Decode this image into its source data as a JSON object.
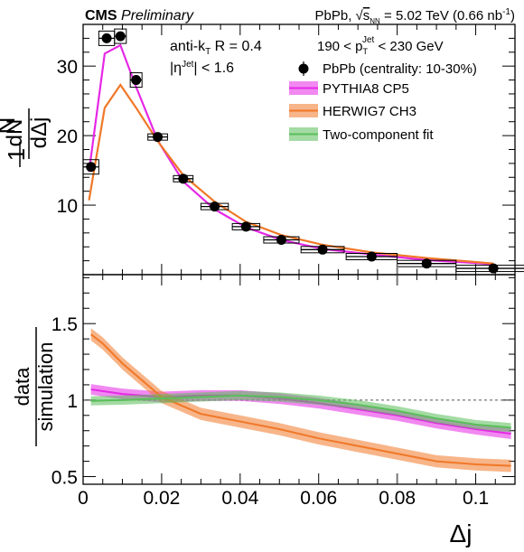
{
  "header": {
    "left_bold": "CMS",
    "left_italic": "Preliminary",
    "right_prefix": "PbPb, ",
    "right_sqrt": "s",
    "right_sqrt_sub": "NN",
    "right_energy": " = 5.02 TeV (0.66 nb",
    "right_lumi_exp": "-1",
    "right_close": ")"
  },
  "annotations": {
    "algo_prefix": "anti-k",
    "algo_sub": "T",
    "algo_suffix": " R = 0.4",
    "eta_prefix": "|η",
    "eta_sup": "Jet",
    "eta_suffix": "| < 1.6",
    "pt_prefix": "190 < p",
    "pt_sub": "T",
    "pt_sup": "Jet",
    "pt_suffix": " < 230 GeV"
  },
  "legend": [
    {
      "label": "PbPb (centrality: 10-30%)",
      "kind": "marker",
      "color": "#000000"
    },
    {
      "label": "PYTHIA8 CP5",
      "kind": "band",
      "color": "#e628e6"
    },
    {
      "label": "HERWIG7 CH3",
      "kind": "band",
      "color": "#f07828"
    },
    {
      "label": "Two-component fit",
      "kind": "band",
      "color": "#5abe5a"
    }
  ],
  "axes": {
    "top_ylabel_num": "1",
    "top_ylabel_frac_num": "dN",
    "top_ylabel_den1": "N",
    "top_ylabel_den2": "dΔj",
    "bottom_ylabel_num": "data",
    "bottom_ylabel_den": "simulation",
    "xlabel": "Δj"
  },
  "chart_data": [
    {
      "type": "scatter",
      "panel": "top",
      "xlim": [
        0,
        0.11
      ],
      "ylim": [
        0,
        36
      ],
      "y_ticks": [
        10,
        20,
        30
      ],
      "series": [
        {
          "name": "PbPb (centrality: 10-30%)",
          "x": [
            0.002,
            0.006,
            0.0095,
            0.0135,
            0.019,
            0.0255,
            0.0335,
            0.0415,
            0.0505,
            0.061,
            0.0735,
            0.0875,
            0.1045
          ],
          "xerr": [
            0.002,
            0.002,
            0.0015,
            0.0015,
            0.0025,
            0.0025,
            0.0035,
            0.0035,
            0.0045,
            0.0055,
            0.0065,
            0.0075,
            0.0095
          ],
          "y": [
            15.5,
            34.0,
            34.3,
            28.0,
            19.8,
            13.8,
            9.8,
            6.9,
            5.0,
            3.6,
            2.6,
            1.6,
            0.9
          ]
        },
        {
          "name": "PYTHIA8 CP5",
          "x": [
            0.0015,
            0.0055,
            0.0095,
            0.0135,
            0.019,
            0.0255,
            0.0335,
            0.0415,
            0.0505,
            0.061,
            0.0735,
            0.0875,
            0.1045
          ],
          "y": [
            14.8,
            31.8,
            33.0,
            27.0,
            19.3,
            13.4,
            9.4,
            6.8,
            5.0,
            3.7,
            2.9,
            2.1,
            1.5
          ]
        },
        {
          "name": "HERWIG7 CH3",
          "x": [
            0.0015,
            0.0055,
            0.0095,
            0.0135,
            0.019,
            0.0255,
            0.0335,
            0.0415,
            0.0505,
            0.061,
            0.0735,
            0.0875,
            0.1045
          ],
          "y": [
            10.7,
            24.0,
            27.3,
            24.0,
            19.2,
            14.3,
            10.5,
            7.6,
            5.7,
            4.3,
            3.2,
            2.4,
            1.6
          ]
        }
      ]
    },
    {
      "type": "line",
      "panel": "bottom",
      "xlim": [
        0,
        0.11
      ],
      "ylim": [
        0.45,
        1.82
      ],
      "y_ticks": [
        0.5,
        1,
        1.5
      ],
      "y_tick_labels": [
        "0.5",
        "1",
        "1.5"
      ],
      "x_ticks": [
        0,
        0.02,
        0.04,
        0.06,
        0.08,
        0.1
      ],
      "x_tick_labels": [
        "0",
        "0.02",
        "0.04",
        "0.06",
        "0.08",
        "0.1"
      ],
      "reference_line": 1,
      "series": [
        {
          "name": "PYTHIA8 CP5",
          "x": [
            0.002,
            0.01,
            0.02,
            0.03,
            0.04,
            0.05,
            0.06,
            0.07,
            0.08,
            0.09,
            0.1,
            0.109
          ],
          "y": [
            1.07,
            1.04,
            1.02,
            1.03,
            1.03,
            1.01,
            0.98,
            0.94,
            0.9,
            0.85,
            0.81,
            0.78
          ],
          "band": 0.035
        },
        {
          "name": "HERWIG7 CH3",
          "x": [
            0.002,
            0.005,
            0.01,
            0.015,
            0.02,
            0.03,
            0.04,
            0.05,
            0.06,
            0.07,
            0.08,
            0.09,
            0.1,
            0.109
          ],
          "y": [
            1.43,
            1.37,
            1.24,
            1.13,
            1.02,
            0.91,
            0.86,
            0.81,
            0.75,
            0.7,
            0.65,
            0.6,
            0.58,
            0.57
          ],
          "band": 0.04
        },
        {
          "name": "Two-component fit",
          "x": [
            0.002,
            0.01,
            0.02,
            0.03,
            0.04,
            0.05,
            0.06,
            0.07,
            0.08,
            0.09,
            0.1,
            0.109
          ],
          "y": [
            0.995,
            1.0,
            1.01,
            1.02,
            1.03,
            1.02,
            1.0,
            0.97,
            0.93,
            0.88,
            0.84,
            0.82
          ],
          "band": 0.03
        }
      ]
    }
  ]
}
